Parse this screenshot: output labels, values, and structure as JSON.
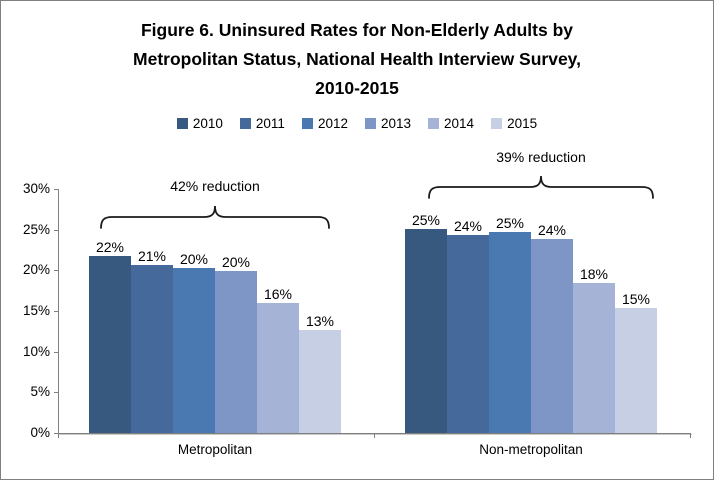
{
  "frame": {
    "border_color": "#808080",
    "background": "#ffffff"
  },
  "title": {
    "lines": [
      "Figure 6. Uninsured Rates for Non-Elderly Adults by",
      "Metropolitan Status, National Health Interview Survey,",
      "2010-2015"
    ]
  },
  "chart_data": {
    "type": "bar",
    "title": "Figure 6. Uninsured Rates for Non-Elderly Adults by Metropolitan Status, National Health Interview Survey, 2010-2015",
    "categories": [
      "Metropolitan",
      "Non-metropolitan"
    ],
    "series": [
      {
        "name": "2010",
        "color": "#38597F",
        "values": [
          21.8,
          25.1
        ],
        "labels": [
          "22%",
          "25%"
        ]
      },
      {
        "name": "2011",
        "color": "#44699A",
        "values": [
          20.7,
          24.3
        ],
        "labels": [
          "21%",
          "24%"
        ]
      },
      {
        "name": "2012",
        "color": "#4A78B0",
        "values": [
          20.3,
          24.7
        ],
        "labels": [
          "20%",
          "25%"
        ]
      },
      {
        "name": "2013",
        "color": "#7D96C6",
        "values": [
          19.9,
          23.9
        ],
        "labels": [
          "20%",
          "24%"
        ]
      },
      {
        "name": "2014",
        "color": "#A4B3D6",
        "values": [
          16.0,
          18.5
        ],
        "labels": [
          "16%",
          "18%"
        ]
      },
      {
        "name": "2015",
        "color": "#C6CFE3",
        "values": [
          12.7,
          15.4
        ],
        "labels": [
          "13%",
          "15%"
        ]
      }
    ],
    "ylabel": "",
    "xlabel": "",
    "ylim": [
      0,
      30
    ],
    "ytick_step": 5,
    "ytick_labels": [
      "0%",
      "5%",
      "10%",
      "15%",
      "20%",
      "25%",
      "30%"
    ],
    "grid": false,
    "legend_position": "top",
    "annotations": [
      {
        "text": "42% reduction",
        "group": "Metropolitan"
      },
      {
        "text": "39% reduction",
        "group": "Non-metropolitan"
      }
    ],
    "axis_color": "#7f7f7f",
    "text_color": "#000000"
  }
}
